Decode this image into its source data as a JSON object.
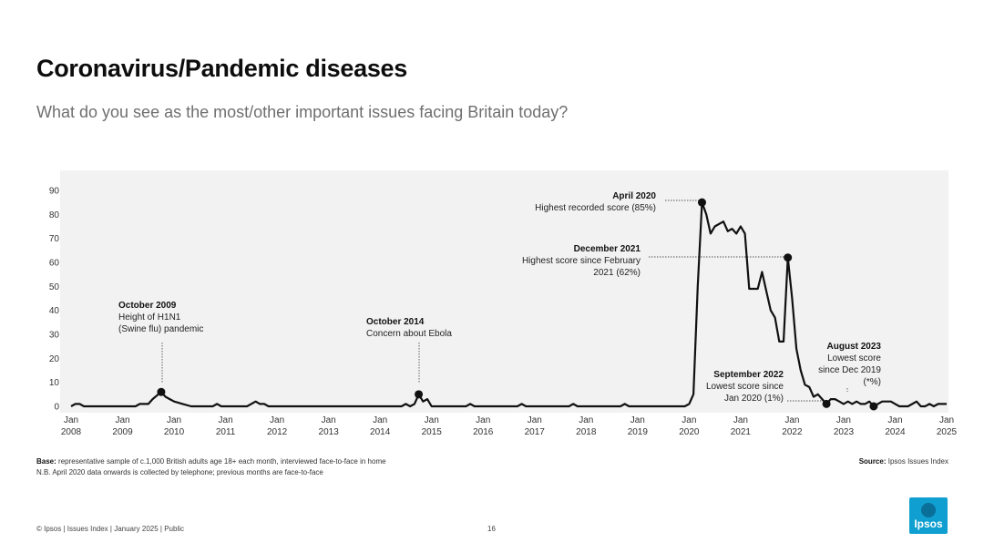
{
  "header": {
    "title": "Coronavirus/Pandemic diseases",
    "subtitle": "What do you see as the most/other important issues facing Britain today?"
  },
  "footer": {
    "base_label": "Base:",
    "base_text": "representative sample of c.1,000 British adults age 18+ each month, interviewed face-to-face in home",
    "nb_text": "N.B. April 2020 data onwards is collected by telephone; previous months are face-to-face",
    "source_label": "Source:",
    "source_text": "Ipsos Issues Index",
    "copyright": "© Ipsos | Issues Index | January 2025 | Public",
    "page_number": "16",
    "logo_text": "Ipsos"
  },
  "colors": {
    "line": "#111111",
    "plot_bg": "#f2f2f2",
    "logo": "#0f9fd0",
    "subtitle": "#6f6f6f"
  },
  "chart_data": {
    "type": "line",
    "title": "Coronavirus/Pandemic diseases",
    "ylim": [
      0,
      90
    ],
    "yticks": [
      0,
      10,
      20,
      30,
      40,
      50,
      60,
      70,
      80,
      90
    ],
    "xlim": [
      "2008-01",
      "2025-01"
    ],
    "xticks": [
      {
        "date": "2008-01",
        "label": [
          "Jan",
          "2008"
        ]
      },
      {
        "date": "2009-01",
        "label": [
          "Jan",
          "2009"
        ]
      },
      {
        "date": "2010-01",
        "label": [
          "Jan",
          "2010"
        ]
      },
      {
        "date": "2011-01",
        "label": [
          "Jan",
          "2011"
        ]
      },
      {
        "date": "2012-01",
        "label": [
          "Jan",
          "2012"
        ]
      },
      {
        "date": "2013-01",
        "label": [
          "Jan",
          "2013"
        ]
      },
      {
        "date": "2014-01",
        "label": [
          "Jan",
          "2014"
        ]
      },
      {
        "date": "2015-01",
        "label": [
          "Jan",
          "2015"
        ]
      },
      {
        "date": "2016-01",
        "label": [
          "Jan",
          "2016"
        ]
      },
      {
        "date": "2017-01",
        "label": [
          "Jan",
          "2017"
        ]
      },
      {
        "date": "2018-01",
        "label": [
          "Jan",
          "2018"
        ]
      },
      {
        "date": "2019-01",
        "label": [
          "Jan",
          "2019"
        ]
      },
      {
        "date": "2020-01",
        "label": [
          "Jan",
          "2020"
        ]
      },
      {
        "date": "2021-01",
        "label": [
          "Jan",
          "2021"
        ]
      },
      {
        "date": "2022-01",
        "label": [
          "Jan",
          "2022"
        ]
      },
      {
        "date": "2023-01",
        "label": [
          "Jan",
          "2023"
        ]
      },
      {
        "date": "2024-01",
        "label": [
          "Jan",
          "2024"
        ]
      },
      {
        "date": "2025-01",
        "label": [
          "Jan",
          "2025"
        ]
      }
    ],
    "grid": false,
    "series": [
      {
        "points": [
          [
            "2008-01",
            0
          ],
          [
            "2008-02",
            1
          ],
          [
            "2008-03",
            1
          ],
          [
            "2008-04",
            0
          ],
          [
            "2008-06",
            0
          ],
          [
            "2008-09",
            0
          ],
          [
            "2008-12",
            0
          ],
          [
            "2009-01",
            0
          ],
          [
            "2009-02",
            0
          ],
          [
            "2009-04",
            0
          ],
          [
            "2009-05",
            1
          ],
          [
            "2009-06",
            1
          ],
          [
            "2009-07",
            1
          ],
          [
            "2009-08",
            3
          ],
          [
            "2009-10",
            6
          ],
          [
            "2009-11",
            4
          ],
          [
            "2009-12",
            3
          ],
          [
            "2010-01",
            2
          ],
          [
            "2010-03",
            1
          ],
          [
            "2010-05",
            0
          ],
          [
            "2010-08",
            0
          ],
          [
            "2010-10",
            0
          ],
          [
            "2010-11",
            1
          ],
          [
            "2010-12",
            0
          ],
          [
            "2011-03",
            0
          ],
          [
            "2011-06",
            0
          ],
          [
            "2011-08",
            2
          ],
          [
            "2011-09",
            1
          ],
          [
            "2011-10",
            1
          ],
          [
            "2011-11",
            0
          ],
          [
            "2012-03",
            0
          ],
          [
            "2012-09",
            0
          ],
          [
            "2013-03",
            0
          ],
          [
            "2013-09",
            0
          ],
          [
            "2014-03",
            0
          ],
          [
            "2014-06",
            0
          ],
          [
            "2014-07",
            1
          ],
          [
            "2014-08",
            0
          ],
          [
            "2014-09",
            1
          ],
          [
            "2014-10",
            5
          ],
          [
            "2014-11",
            2
          ],
          [
            "2014-12",
            3
          ],
          [
            "2015-01",
            0
          ],
          [
            "2015-06",
            0
          ],
          [
            "2015-09",
            0
          ],
          [
            "2015-10",
            1
          ],
          [
            "2015-11",
            0
          ],
          [
            "2016-06",
            0
          ],
          [
            "2016-09",
            0
          ],
          [
            "2016-10",
            1
          ],
          [
            "2016-11",
            0
          ],
          [
            "2017-06",
            0
          ],
          [
            "2017-09",
            0
          ],
          [
            "2017-10",
            1
          ],
          [
            "2017-11",
            0
          ],
          [
            "2018-06",
            0
          ],
          [
            "2018-09",
            0
          ],
          [
            "2018-10",
            1
          ],
          [
            "2018-11",
            0
          ],
          [
            "2019-06",
            0
          ],
          [
            "2019-11",
            0
          ],
          [
            "2019-12",
            0
          ],
          [
            "2020-01",
            1
          ],
          [
            "2020-02",
            5
          ],
          [
            "2020-03",
            50
          ],
          [
            "2020-04",
            85
          ],
          [
            "2020-05",
            80
          ],
          [
            "2020-06",
            72
          ],
          [
            "2020-07",
            75
          ],
          [
            "2020-09",
            77
          ],
          [
            "2020-10",
            73
          ],
          [
            "2020-11",
            74
          ],
          [
            "2020-12",
            72
          ],
          [
            "2021-01",
            75
          ],
          [
            "2021-02",
            72
          ],
          [
            "2021-03",
            49
          ],
          [
            "2021-04",
            49
          ],
          [
            "2021-05",
            49
          ],
          [
            "2021-06",
            56
          ],
          [
            "2021-07",
            48
          ],
          [
            "2021-08",
            40
          ],
          [
            "2021-09",
            37
          ],
          [
            "2021-10",
            27
          ],
          [
            "2021-11",
            27
          ],
          [
            "2021-12",
            62
          ],
          [
            "2022-01",
            45
          ],
          [
            "2022-02",
            24
          ],
          [
            "2022-03",
            15
          ],
          [
            "2022-04",
            9
          ],
          [
            "2022-05",
            8
          ],
          [
            "2022-06",
            4
          ],
          [
            "2022-07",
            5
          ],
          [
            "2022-08",
            3
          ],
          [
            "2022-09",
            1
          ],
          [
            "2022-10",
            3
          ],
          [
            "2022-11",
            3
          ],
          [
            "2022-12",
            2
          ],
          [
            "2023-01",
            1
          ],
          [
            "2023-02",
            2
          ],
          [
            "2023-03",
            1
          ],
          [
            "2023-04",
            2
          ],
          [
            "2023-05",
            1
          ],
          [
            "2023-06",
            1
          ],
          [
            "2023-07",
            2
          ],
          [
            "2023-08",
            0
          ],
          [
            "2023-09",
            1
          ],
          [
            "2023-10",
            2
          ],
          [
            "2023-11",
            2
          ],
          [
            "2023-12",
            2
          ],
          [
            "2024-01",
            1
          ],
          [
            "2024-02",
            0
          ],
          [
            "2024-03",
            0
          ],
          [
            "2024-04",
            0
          ],
          [
            "2024-05",
            1
          ],
          [
            "2024-06",
            2
          ],
          [
            "2024-07",
            0
          ],
          [
            "2024-08",
            0
          ],
          [
            "2024-09",
            1
          ],
          [
            "2024-10",
            0
          ],
          [
            "2024-11",
            1
          ],
          [
            "2024-12",
            1
          ],
          [
            "2025-01",
            1
          ]
        ]
      }
    ],
    "annotations": [
      {
        "date": "2009-10",
        "value": 6,
        "heading": "October 2009",
        "lines": [
          "Height of H1N1",
          "(Swine flu) pandemic"
        ]
      },
      {
        "date": "2014-10",
        "value": 5,
        "heading": "October 2014",
        "lines": [
          "Concern about Ebola"
        ]
      },
      {
        "date": "2020-04",
        "value": 85,
        "heading": "April 2020",
        "lines": [
          "Highest recorded score (85%)"
        ]
      },
      {
        "date": "2021-12",
        "value": 62,
        "heading": "December 2021",
        "lines": [
          "Highest score since February",
          "2021 (62%)"
        ]
      },
      {
        "date": "2022-09",
        "value": 1,
        "heading": "September 2022",
        "lines": [
          "Lowest score since",
          "Jan 2020 (1%)"
        ]
      },
      {
        "date": "2023-08",
        "value": 0,
        "heading": "August 2023",
        "lines": [
          "Lowest score",
          "since Dec 2019",
          "(*%)"
        ]
      }
    ]
  }
}
